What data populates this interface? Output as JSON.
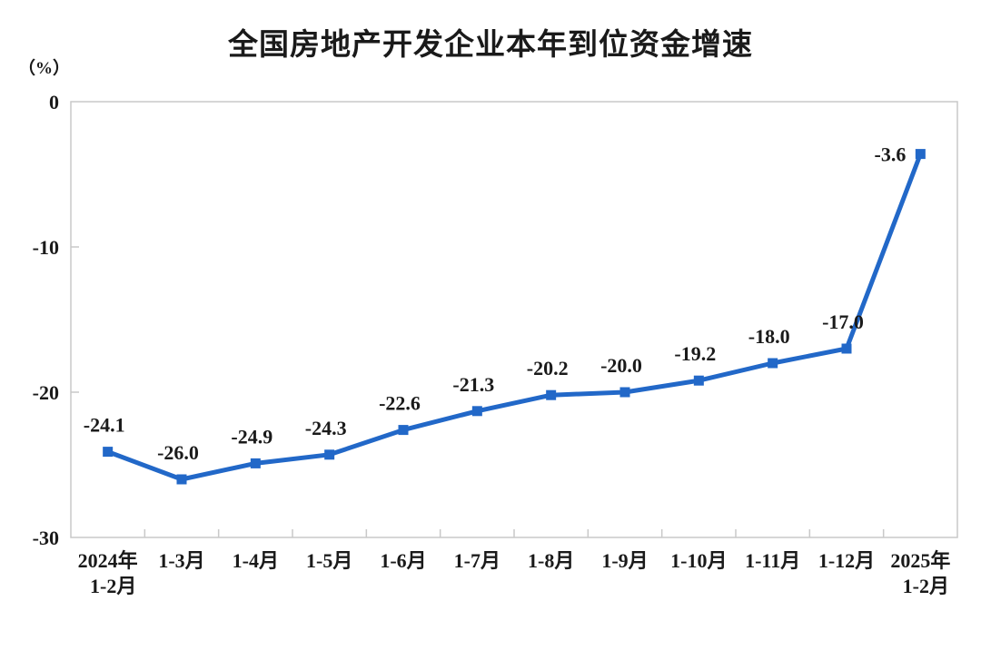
{
  "chart_data": {
    "type": "line",
    "title": "全国房地产开发企业本年到位资金增速",
    "unit_label": "（%）",
    "categories": [
      "2024年\n1-2月",
      "1-3月",
      "1-4月",
      "1-5月",
      "1-6月",
      "1-7月",
      "1-8月",
      "1-9月",
      "1-10月",
      "1-11月",
      "1-12月",
      "2025年\n1-2月"
    ],
    "values": [
      -24.1,
      -26.0,
      -24.9,
      -24.3,
      -22.6,
      -21.3,
      -20.2,
      -20.0,
      -19.2,
      -18.0,
      -17.0,
      -3.6
    ],
    "data_labels": [
      "-24.1",
      "-26.0",
      "-24.9",
      "-24.3",
      "-22.6",
      "-21.3",
      "-20.2",
      "-20.0",
      "-19.2",
      "-18.0",
      "-17.0",
      "-3.6"
    ],
    "y_ticks": [
      0,
      -10,
      -20,
      -30
    ],
    "y_tick_labels": [
      "0",
      "-10",
      "-20",
      "-30"
    ],
    "ylim": [
      -30,
      0
    ],
    "xlabel": "",
    "ylabel": "（%）",
    "grid": "off",
    "legend": "none",
    "marker": "square",
    "colors": {
      "line": "#2268C8",
      "axis": "#C9C9C9",
      "text": "#1a1a1a",
      "background": "#ffffff"
    }
  }
}
